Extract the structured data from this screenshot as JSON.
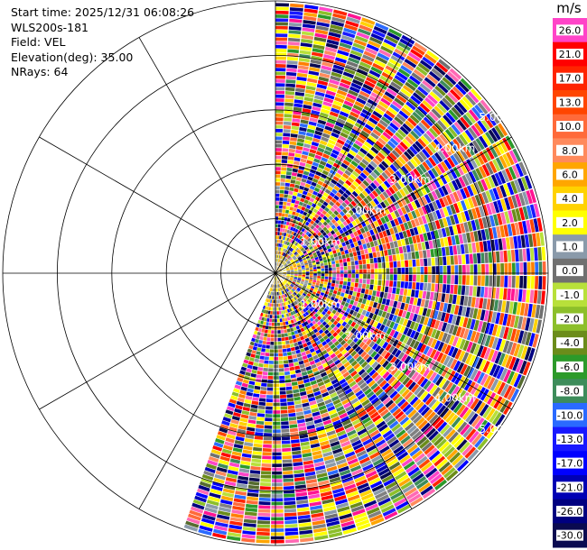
{
  "info": {
    "start_time": "Start time: 2025/12/31 06:08:26",
    "station": "WLS200s-181",
    "field": "Field: VEL",
    "elevation": "Elevation(deg): 35.00",
    "nrays": "NRays: 64"
  },
  "chart_data": {
    "type": "heatmap",
    "projection": "polar-ppi",
    "field": "VEL",
    "units": "m/s",
    "elevation_deg": 35.0,
    "n_rays": 64,
    "azimuth_coverage_deg": [
      0,
      200
    ],
    "max_range_km": 5.0,
    "range_rings_km": [
      1.0,
      2.0,
      3.0,
      4.0,
      5.0
    ],
    "range_ring_labels": [
      "1.00km",
      "2.00km",
      "3.00km",
      "4.00km",
      "5.00km"
    ],
    "radial_lines_deg": [
      0,
      30,
      60,
      90,
      120,
      150,
      180,
      210,
      240,
      270,
      300,
      330
    ],
    "colorbar": {
      "unit_label": "m/s",
      "ticks": [
        "26.0",
        "21.0",
        "17.0",
        "13.0",
        "10.0",
        "8.0",
        "6.0",
        "4.0",
        "2.0",
        "1.0",
        "0.0",
        "-1.0",
        "-2.0",
        "-4.0",
        "-6.0",
        "-8.0",
        "-10.0",
        "-13.0",
        "-17.0",
        "-21.0",
        "-26.0",
        "-30.0"
      ],
      "colors": [
        "#ff44c8",
        "#ff0000",
        "#ff2400",
        "#ff4500",
        "#ff6a3a",
        "#ff8a5c",
        "#ffa600",
        "#ffd200",
        "#ffff00",
        "#8a9aaa",
        "#707070",
        "#b8e03a",
        "#8cbf2a",
        "#6b8c1a",
        "#2c9a2a",
        "#3d8c5a",
        "#2a6aff",
        "#1818ff",
        "#0000ff",
        "#0000b4",
        "#000080",
        "#0a0a50"
      ]
    }
  }
}
